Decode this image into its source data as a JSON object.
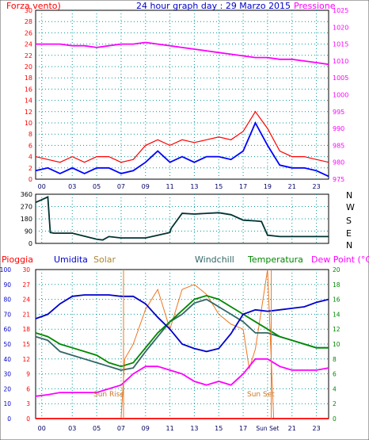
{
  "colors": {
    "wind": "#ff0000",
    "gust": "#0000ff",
    "pressure": "#ff00ff",
    "direction": "#003333",
    "rain": "#ff0000",
    "humidity": "#0000cc",
    "solar": "#ee7722",
    "windchill": "#336666",
    "temperature": "#008800",
    "dewpoint": "#ff00ff",
    "axis_blue": "#0000cc",
    "axis_green": "#008800",
    "grid": "#009999"
  },
  "chart_data": [
    {
      "type": "line",
      "title": "24 hour graph day : 29 Marzo 2015",
      "left_axis_label": "Forza vento)",
      "right_axis_label": "Pressione",
      "x_ticks": [
        "00",
        "03",
        "05",
        "07",
        "09",
        "11",
        "13",
        "15",
        "17",
        "19",
        "21",
        "23"
      ],
      "left_ticks": [
        "0",
        "2",
        "4",
        "6",
        "8",
        "10",
        "12",
        "14",
        "16",
        "18",
        "20",
        "22",
        "24",
        "26",
        "28",
        "30"
      ],
      "right_ticks": [
        "975",
        "980",
        "985",
        "990",
        "995",
        "1000",
        "1005",
        "1010",
        "1015",
        "1020",
        "1025"
      ],
      "ylim_left": [
        0,
        30
      ],
      "ylim_right": [
        975,
        1025
      ],
      "grid": true,
      "series": [
        {
          "key": "wind",
          "axis": "left",
          "x": [
            0,
            1,
            2,
            3,
            4,
            5,
            6,
            7,
            8,
            9,
            10,
            11,
            12,
            13,
            14,
            15,
            16,
            17,
            18,
            19,
            20,
            21,
            22,
            23,
            24
          ],
          "values": [
            4,
            3.5,
            3,
            4,
            3,
            4,
            4,
            3,
            3.5,
            6,
            7,
            6,
            7,
            6.5,
            7,
            7.5,
            7,
            8.5,
            12,
            9,
            5,
            4,
            4,
            3.5,
            3
          ]
        },
        {
          "key": "gust",
          "axis": "left",
          "x": [
            0,
            1,
            2,
            3,
            4,
            5,
            6,
            7,
            8,
            9,
            10,
            11,
            12,
            13,
            14,
            15,
            16,
            17,
            18,
            19,
            20,
            21,
            22,
            23,
            24
          ],
          "values": [
            1.5,
            2,
            1,
            2,
            1,
            2,
            2,
            1,
            1.5,
            3,
            5,
            3,
            4,
            3,
            4,
            4,
            3.5,
            5,
            10,
            6,
            2.5,
            2,
            2,
            1.5,
            0.5
          ]
        },
        {
          "key": "pressure",
          "axis": "right",
          "x": [
            0,
            1,
            2,
            3,
            4,
            5,
            6,
            7,
            8,
            9,
            10,
            11,
            12,
            13,
            14,
            15,
            16,
            17,
            18,
            19,
            20,
            21,
            22,
            23,
            24
          ],
          "values": [
            1015,
            1015,
            1015,
            1014.5,
            1014.5,
            1014,
            1014.5,
            1015,
            1015,
            1015.5,
            1015,
            1014.5,
            1014,
            1013.5,
            1013,
            1012.5,
            1012,
            1011.5,
            1011,
            1011,
            1010.5,
            1010.5,
            1010,
            1009.5,
            1009
          ]
        }
      ]
    },
    {
      "type": "line",
      "right_labels": [
        "N",
        "W",
        "S",
        "E",
        "N"
      ],
      "y_ticks": [
        "0",
        "90",
        "180",
        "270",
        "360"
      ],
      "ylim": [
        0,
        360
      ],
      "grid": true,
      "series": [
        {
          "key": "direction",
          "x": [
            0,
            0.5,
            1,
            1.2,
            1.5,
            3,
            5,
            5.5,
            6,
            7,
            8,
            9,
            10,
            11,
            11.1,
            12,
            13,
            14,
            15,
            16,
            17,
            18,
            18.5,
            19,
            20,
            22,
            24
          ],
          "values": [
            300,
            320,
            340,
            80,
            75,
            75,
            30,
            25,
            50,
            40,
            40,
            40,
            60,
            80,
            110,
            220,
            215,
            220,
            225,
            210,
            170,
            165,
            160,
            60,
            50,
            50,
            50
          ]
        }
      ]
    },
    {
      "type": "line",
      "legend": [
        "Pioggia",
        "Umidita",
        "Solar",
        "Windchill",
        "Temperatura",
        "Dew Point (°C)"
      ],
      "left_ticks_humidity": [
        "0",
        "10",
        "20",
        "30",
        "40",
        "50",
        "60",
        "70",
        "80",
        "90",
        "100"
      ],
      "left_ticks_rain": [
        "0",
        "3",
        "6",
        "9",
        "12",
        "15",
        "18",
        "21",
        "24",
        "27",
        "30"
      ],
      "right_ticks": [
        "0",
        "2",
        "4",
        "6",
        "8",
        "10",
        "12",
        "14",
        "16",
        "18",
        "20"
      ],
      "x_ticks": [
        "00",
        "03",
        "05",
        "07",
        "09",
        "11",
        "13",
        "15",
        "17",
        "Sun Set",
        "21",
        "23"
      ],
      "annotations": [
        "Sun Rise",
        "Sun Set"
      ],
      "ylim_humidity": [
        0,
        100
      ],
      "ylim_temperature": [
        0,
        20
      ],
      "grid": true,
      "series": [
        {
          "key": "rain",
          "axis": "rain",
          "x": [
            0,
            24
          ],
          "values": [
            0,
            0
          ]
        },
        {
          "key": "humidity",
          "axis": "humidity",
          "x": [
            0,
            1,
            2,
            3,
            4,
            5,
            6,
            7,
            8,
            9,
            10,
            11,
            12,
            13,
            14,
            15,
            16,
            17,
            18,
            19,
            20,
            21,
            22,
            23,
            24
          ],
          "values": [
            67,
            70,
            77,
            82,
            83,
            83,
            83,
            82,
            82,
            77,
            68,
            60,
            50,
            47,
            45,
            47,
            57,
            70,
            73,
            72,
            73,
            74,
            75,
            78,
            80
          ]
        },
        {
          "key": "solar",
          "axis": "rain",
          "x": [
            0,
            7,
            7.3,
            8,
            9,
            10,
            11,
            12,
            13,
            14,
            15,
            16,
            17,
            17.5,
            18,
            19,
            19.5,
            24
          ],
          "values": [
            0,
            0,
            12,
            15,
            22,
            26,
            18,
            26,
            27,
            25,
            21,
            19,
            18,
            10,
            14,
            30,
            0,
            0
          ]
        },
        {
          "key": "windchill",
          "axis": "temperature",
          "x": [
            0,
            1,
            2,
            3,
            4,
            5,
            6,
            7,
            8,
            9,
            10,
            11,
            12,
            13,
            14,
            15,
            16,
            17,
            18,
            19,
            20,
            21,
            22,
            23,
            24
          ],
          "values": [
            11,
            10.5,
            9,
            8.5,
            8,
            7.5,
            7,
            6.5,
            6.8,
            9,
            11,
            13,
            14,
            15.5,
            16,
            15,
            14,
            13,
            11.5,
            11.5,
            11,
            10.5,
            10,
            9.5,
            9.5
          ]
        },
        {
          "key": "temperature",
          "axis": "temperature",
          "x": [
            0,
            1,
            2,
            3,
            4,
            5,
            6,
            7,
            8,
            9,
            10,
            11,
            12,
            13,
            14,
            15,
            16,
            17,
            18,
            19,
            20,
            21,
            22,
            23,
            24
          ],
          "values": [
            11.5,
            11,
            10,
            9.5,
            9,
            8.5,
            7.5,
            7,
            7.5,
            9.5,
            11.5,
            13,
            14.5,
            16,
            16.5,
            16,
            15,
            14,
            13,
            12,
            11,
            10.5,
            10,
            9.5,
            9.5
          ]
        },
        {
          "key": "dewpoint",
          "axis": "temperature",
          "x": [
            0,
            1,
            2,
            3,
            4,
            5,
            6,
            7,
            8,
            9,
            10,
            11,
            12,
            13,
            14,
            15,
            16,
            17,
            18,
            19,
            20,
            21,
            22,
            23,
            24
          ],
          "values": [
            3,
            3.2,
            3.5,
            3.5,
            3.5,
            3.5,
            4,
            4.5,
            6,
            7,
            7,
            6.5,
            6,
            5,
            4.5,
            5,
            4.5,
            6,
            8,
            8,
            7,
            6.5,
            6.5,
            6.5,
            6.8
          ]
        }
      ]
    }
  ]
}
